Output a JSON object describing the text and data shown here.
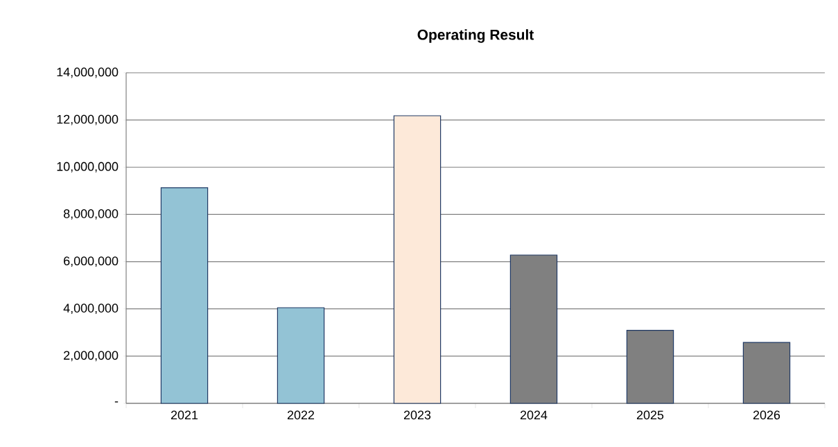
{
  "chart_data": {
    "type": "bar",
    "title": "Operating Result",
    "categories": [
      "2021",
      "2022",
      "2023",
      "2024",
      "2025",
      "2026"
    ],
    "values": [
      9130000,
      4050000,
      12180000,
      6280000,
      3090000,
      2580000
    ],
    "colors": [
      "#93c3d5",
      "#93c3d5",
      "#fde9d9",
      "#808080",
      "#808080",
      "#808080"
    ],
    "ylim": [
      0,
      14000000
    ],
    "yticks": [
      {
        "value": 0,
        "label": "-"
      },
      {
        "value": 2000000,
        "label": "2,000,000"
      },
      {
        "value": 4000000,
        "label": "4,000,000"
      },
      {
        "value": 6000000,
        "label": "6,000,000"
      },
      {
        "value": 8000000,
        "label": "8,000,000"
      },
      {
        "value": 10000000,
        "label": "10,000,000"
      },
      {
        "value": 12000000,
        "label": "12,000,000"
      },
      {
        "value": 14000000,
        "label": "14,000,000"
      }
    ],
    "grid": "y"
  }
}
